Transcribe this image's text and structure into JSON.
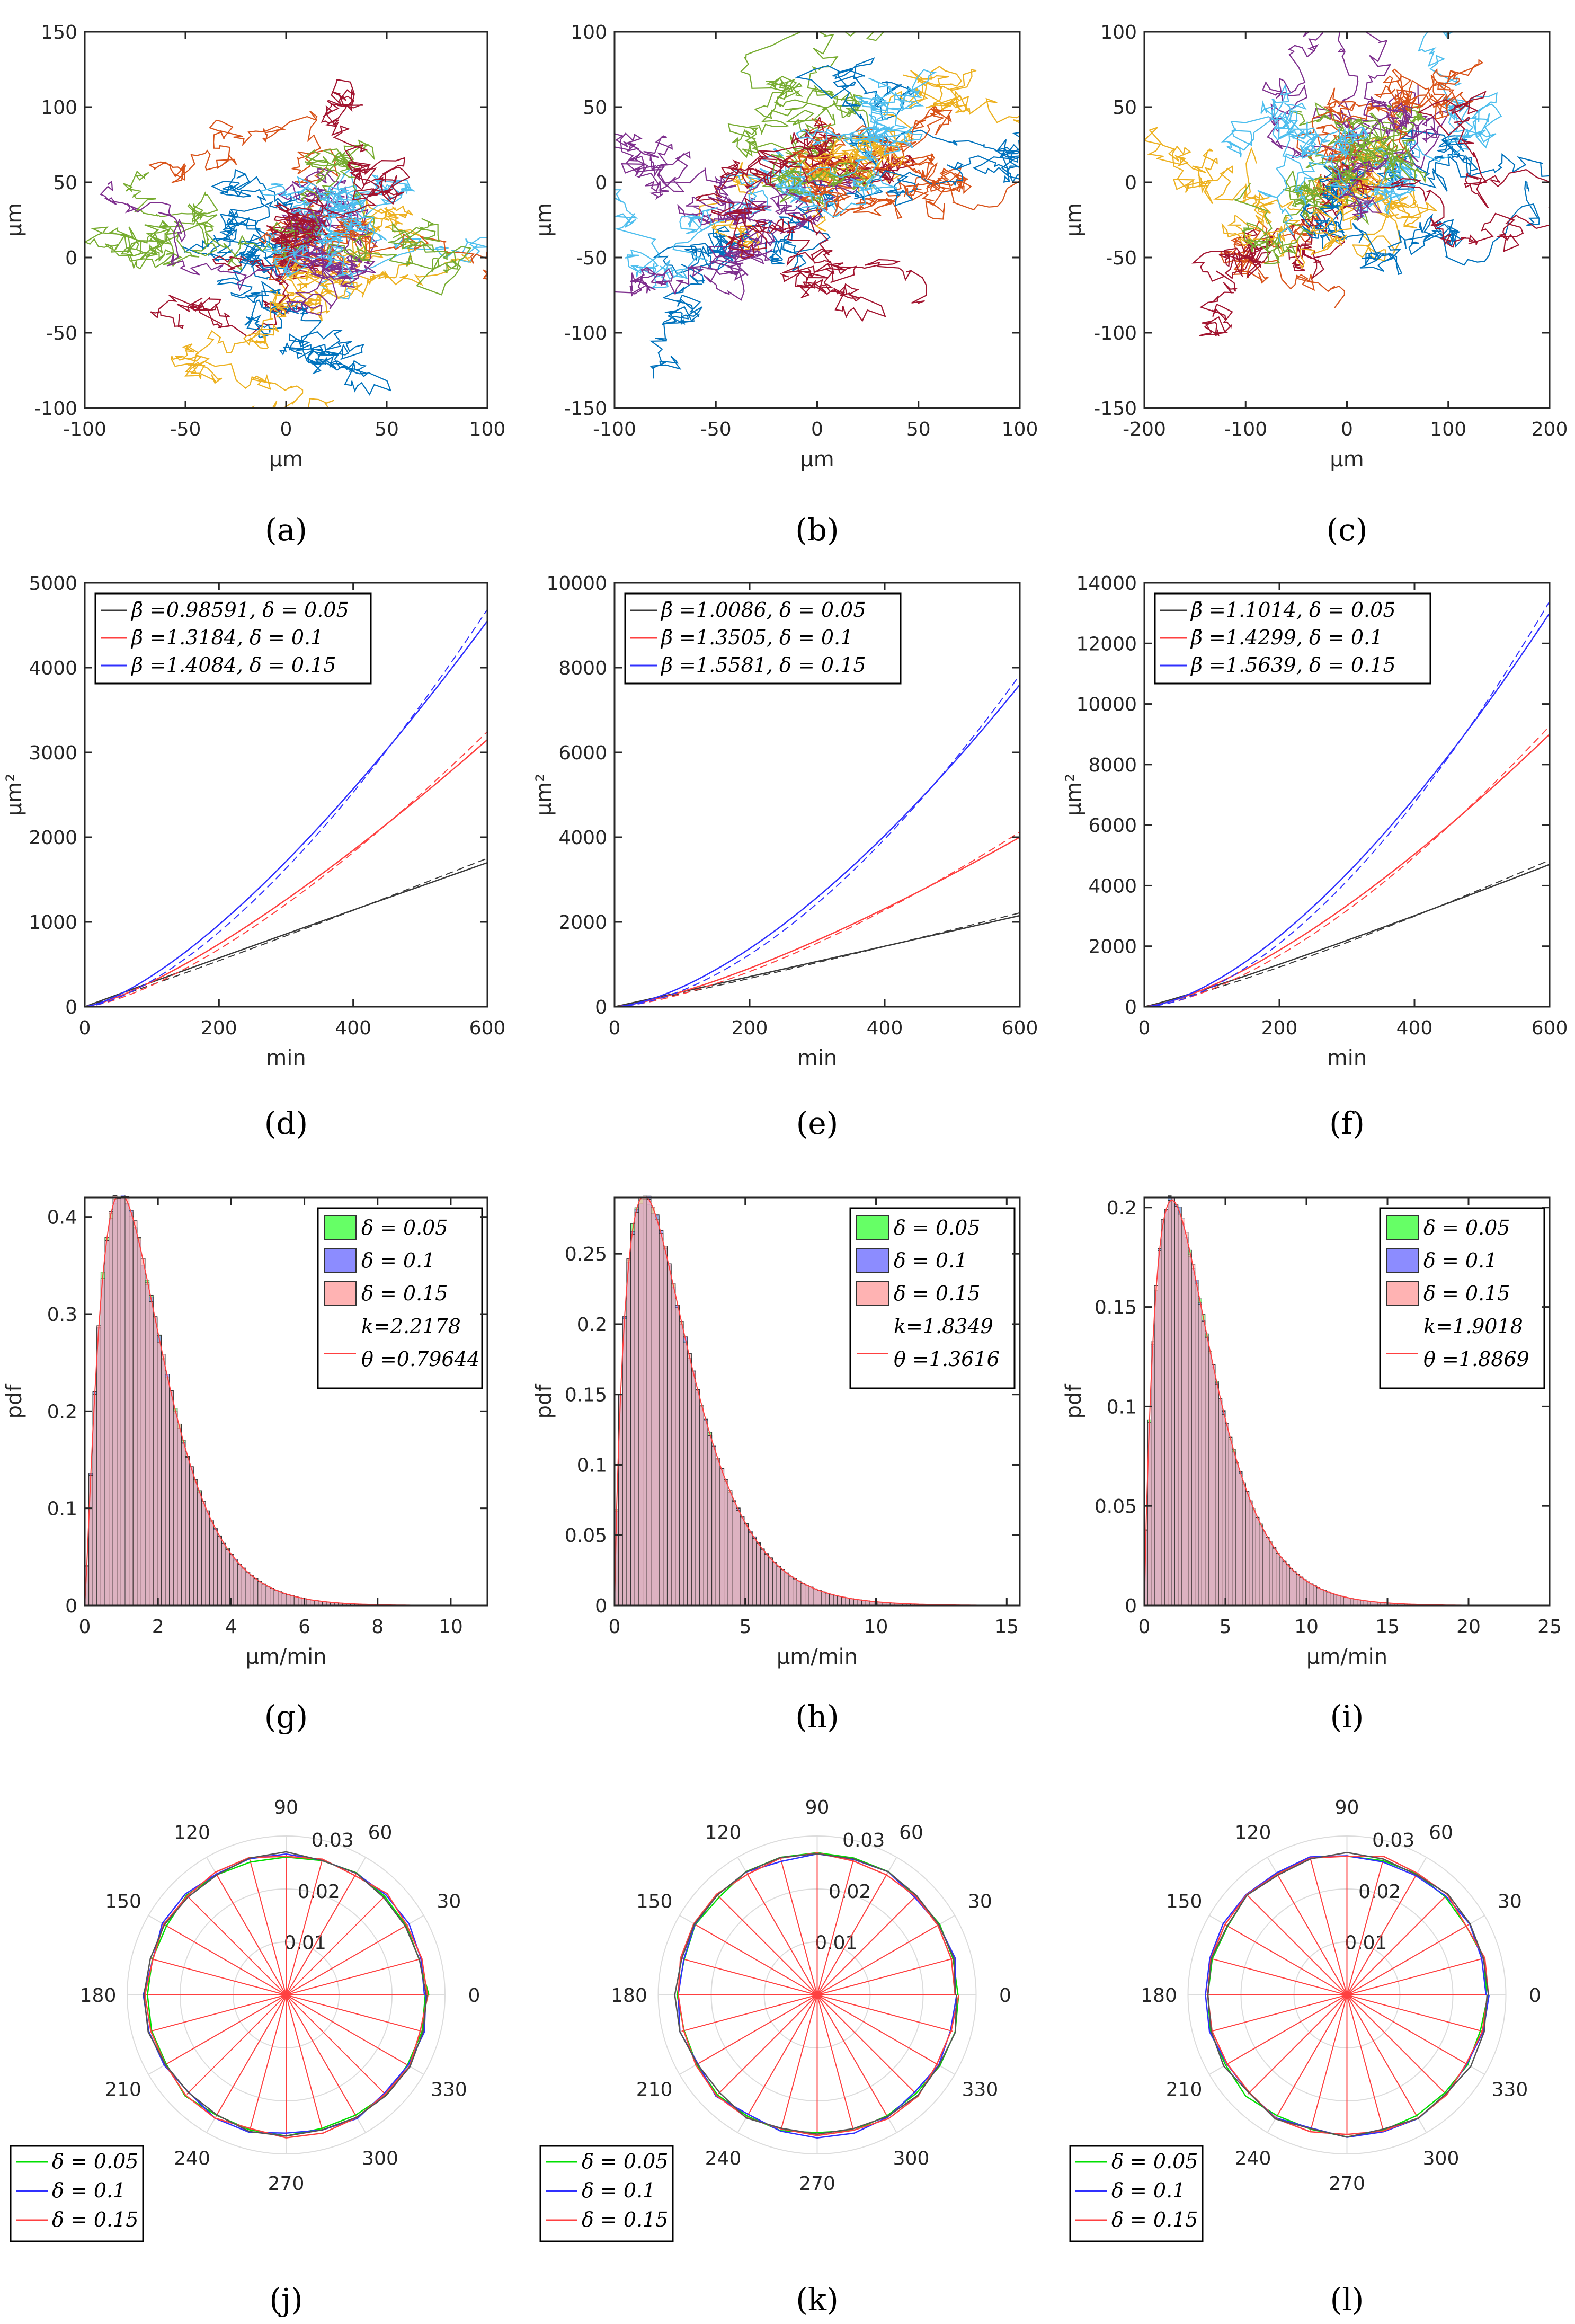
{
  "figure": {
    "rows": {
      "trajectories": {
        "xlabel": "μm",
        "ylabel": "μm"
      },
      "msd": {
        "xlabel": "min",
        "ylabel": "μm²"
      },
      "speed": {
        "xlabel": "μm/min",
        "ylabel": "pdf"
      },
      "angle": {}
    },
    "colors": {
      "black": "#3a3a3a",
      "red": "#ff4040",
      "blue": "#3030ff",
      "green": "#00e000",
      "traj": [
        "#0072BD",
        "#D95319",
        "#EDB120",
        "#7E2F8E",
        "#77AC30",
        "#4DBEEE",
        "#A2142F"
      ]
    }
  },
  "chart_data": [
    {
      "id": "a",
      "label": "(a)",
      "type": "line",
      "title": "",
      "xlabel": "μm",
      "ylabel": "μm",
      "xlim": [
        -100,
        100
      ],
      "ylim": [
        -100,
        150
      ],
      "xticks": [
        "-100",
        "-50",
        "0",
        "50",
        "100"
      ],
      "yticks": [
        "-100",
        "-50",
        "0",
        "50",
        "100",
        "150"
      ],
      "series_count": 7,
      "spread": [
        24,
        22
      ]
    },
    {
      "id": "b",
      "label": "(b)",
      "type": "line",
      "title": "",
      "xlabel": "μm",
      "ylabel": "μm",
      "xlim": [
        -100,
        100
      ],
      "ylim": [
        -150,
        100
      ],
      "xticks": [
        "-100",
        "-50",
        "0",
        "50",
        "100"
      ],
      "yticks": [
        "-150",
        "-100",
        "-50",
        "0",
        "50",
        "100"
      ],
      "series_count": 7,
      "spread": [
        26,
        24
      ]
    },
    {
      "id": "c",
      "label": "(c)",
      "type": "line",
      "title": "",
      "xlabel": "μm",
      "ylabel": "μm",
      "xlim": [
        -200,
        200
      ],
      "ylim": [
        -150,
        100
      ],
      "xticks": [
        "-200",
        "-100",
        "0",
        "100",
        "200"
      ],
      "yticks": [
        "-150",
        "-100",
        "-50",
        "0",
        "50",
        "100"
      ],
      "series_count": 7,
      "spread": [
        45,
        26
      ]
    },
    {
      "id": "d",
      "label": "(d)",
      "type": "line",
      "xlabel": "min",
      "ylabel": "μm²",
      "xlim": [
        0,
        600
      ],
      "ylim": [
        0,
        5000
      ],
      "xticks": [
        "0",
        "200",
        "400",
        "600"
      ],
      "yticks": [
        "0",
        "1000",
        "2000",
        "3000",
        "4000",
        "5000"
      ],
      "series": [
        {
          "name": "β̄ =0.98591, δ = 0.05",
          "color": "black",
          "end": 1700,
          "beta": 0.98591
        },
        {
          "name": "β̄ =1.3184, δ = 0.1",
          "color": "red",
          "end": 3150,
          "beta": 1.3184
        },
        {
          "name": "β̄ =1.4084, δ = 0.15",
          "color": "blue",
          "end": 4550,
          "beta": 1.4084
        }
      ]
    },
    {
      "id": "e",
      "label": "(e)",
      "type": "line",
      "xlabel": "min",
      "ylabel": "μm²",
      "xlim": [
        0,
        600
      ],
      "ylim": [
        0,
        10000
      ],
      "xticks": [
        "0",
        "200",
        "400",
        "600"
      ],
      "yticks": [
        "0",
        "2000",
        "4000",
        "6000",
        "8000",
        "10000"
      ],
      "series": [
        {
          "name": "β̄ =1.0086, δ = 0.05",
          "color": "black",
          "end": 2150,
          "beta": 1.0086
        },
        {
          "name": "β̄ =1.3505, δ = 0.1",
          "color": "red",
          "end": 4000,
          "beta": 1.3505
        },
        {
          "name": "β̄ =1.5581, δ = 0.15",
          "color": "blue",
          "end": 7600,
          "beta": 1.5581
        }
      ]
    },
    {
      "id": "f",
      "label": "(f)",
      "type": "line",
      "xlabel": "min",
      "ylabel": "μm²",
      "xlim": [
        0,
        600
      ],
      "ylim": [
        0,
        14000
      ],
      "xticks": [
        "0",
        "200",
        "400",
        "600"
      ],
      "yticks": [
        "0",
        "2000",
        "4000",
        "6000",
        "8000",
        "10000",
        "12000",
        "14000"
      ],
      "series": [
        {
          "name": "β̄ =1.1014, δ = 0.05",
          "color": "black",
          "end": 4700,
          "beta": 1.1014
        },
        {
          "name": "β̄ =1.4299, δ = 0.1",
          "color": "red",
          "end": 9000,
          "beta": 1.4299
        },
        {
          "name": "β̄ =1.5639, δ = 0.15",
          "color": "blue",
          "end": 13000,
          "beta": 1.5639
        }
      ]
    },
    {
      "id": "g",
      "label": "(g)",
      "type": "bar",
      "xlabel": "μm/min",
      "ylabel": "pdf",
      "xlim": [
        0,
        11
      ],
      "ylim": [
        0,
        0.42
      ],
      "xticks": [
        "0",
        "2",
        "4",
        "6",
        "8",
        "10"
      ],
      "yticks": [
        "0",
        "0.1",
        "0.2",
        "0.3",
        "0.4"
      ],
      "gamma": {
        "k": 2.2178,
        "theta": 0.79644
      },
      "bins": 100,
      "legend": [
        "δ = 0.05",
        "δ = 0.1",
        "δ = 0.15",
        "k=2.2178",
        "θ =0.79644"
      ]
    },
    {
      "id": "h",
      "label": "(h)",
      "type": "bar",
      "xlabel": "μm/min",
      "ylabel": "pdf",
      "xlim": [
        0,
        15.5
      ],
      "ylim": [
        0,
        0.29
      ],
      "xticks": [
        "0",
        "5",
        "10",
        "15"
      ],
      "yticks": [
        "0",
        "0.05",
        "0.1",
        "0.15",
        "0.2",
        "0.25"
      ],
      "gamma": {
        "k": 1.8349,
        "theta": 1.3616
      },
      "bins": 100,
      "legend": [
        "δ = 0.05",
        "δ = 0.1",
        "δ = 0.15",
        "k=1.8349",
        "θ =1.3616"
      ]
    },
    {
      "id": "i",
      "label": "(i)",
      "type": "bar",
      "xlabel": "μm/min",
      "ylabel": "pdf",
      "xlim": [
        0,
        25
      ],
      "ylim": [
        0,
        0.205
      ],
      "xticks": [
        "0",
        "5",
        "10",
        "15",
        "20",
        "25"
      ],
      "yticks": [
        "0",
        "0.05",
        "0.1",
        "0.15",
        "0.2"
      ],
      "gamma": {
        "k": 1.9018,
        "theta": 1.8869
      },
      "bins": 120,
      "legend": [
        "δ = 0.05",
        "δ = 0.1",
        "δ = 0.15",
        "k=1.9018",
        "θ =1.8869"
      ]
    },
    {
      "id": "j",
      "label": "(j)",
      "type": "polar",
      "rlim": [
        0,
        0.03
      ],
      "rticks": [
        "0.01",
        "0.02",
        "0.03"
      ],
      "angles": [
        "0",
        "30",
        "60",
        "90",
        "120",
        "150",
        "180",
        "210",
        "240",
        "270",
        "300",
        "330"
      ],
      "bins": 24,
      "value": 0.0265,
      "legend": [
        "δ = 0.05",
        "δ = 0.1",
        "δ = 0.15"
      ]
    },
    {
      "id": "k",
      "label": "(k)",
      "type": "polar",
      "rlim": [
        0,
        0.03
      ],
      "rticks": [
        "0.01",
        "0.02",
        "0.03"
      ],
      "angles": [
        "0",
        "30",
        "60",
        "90",
        "120",
        "150",
        "180",
        "210",
        "240",
        "270",
        "300",
        "330"
      ],
      "bins": 24,
      "value": 0.0265,
      "legend": [
        "δ = 0.05",
        "δ = 0.1",
        "δ = 0.15"
      ]
    },
    {
      "id": "l",
      "label": "(l)",
      "type": "polar",
      "rlim": [
        0,
        0.03
      ],
      "rticks": [
        "0.01",
        "0.02",
        "0.03"
      ],
      "angles": [
        "0",
        "30",
        "60",
        "90",
        "120",
        "150",
        "180",
        "210",
        "240",
        "270",
        "300",
        "330"
      ],
      "bins": 24,
      "value": 0.0265,
      "legend": [
        "δ = 0.05",
        "δ = 0.1",
        "δ = 0.15"
      ]
    }
  ]
}
